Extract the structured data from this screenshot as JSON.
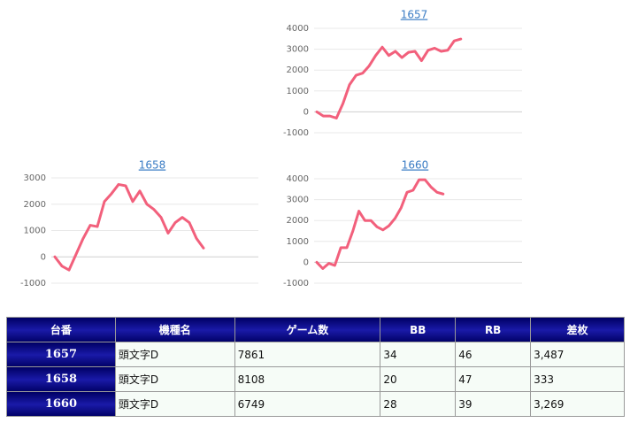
{
  "chart_data": [
    {
      "type": "line",
      "title": "1657",
      "color": "#f2607c",
      "values": [
        0,
        -200,
        -200,
        -300,
        400,
        1300,
        1750,
        1850,
        2200,
        2700,
        3100,
        2700,
        2900,
        2600,
        2850,
        2900,
        2450,
        2950,
        3050,
        2900,
        2950,
        3400,
        3487
      ],
      "ylim": [
        -1000,
        4000
      ],
      "yticks": [
        -1000,
        0,
        1000,
        2000,
        3000,
        4000
      ],
      "grid": true
    },
    {
      "type": "line",
      "title": "1658",
      "color": "#f2607c",
      "values": [
        0,
        -350,
        -500,
        100,
        700,
        1200,
        1150,
        2100,
        2400,
        2750,
        2700,
        2100,
        2500,
        2000,
        1800,
        1500,
        900,
        1300,
        1500,
        1300,
        700,
        333
      ],
      "ylim": [
        -1000,
        3000
      ],
      "yticks": [
        -1000,
        0,
        1000,
        2000,
        3000
      ],
      "grid": true
    },
    {
      "type": "line",
      "title": "1660",
      "color": "#f2607c",
      "values": [
        0,
        -300,
        -50,
        -150,
        700,
        700,
        1500,
        2450,
        2000,
        2000,
        1700,
        1550,
        1750,
        2100,
        2600,
        3350,
        3450,
        3950,
        3950,
        3600,
        3350,
        3269
      ],
      "ylim": [
        -1000,
        4000
      ],
      "yticks": [
        -1000,
        0,
        1000,
        2000,
        3000,
        4000
      ],
      "grid": true
    }
  ],
  "table": {
    "header": [
      "台番",
      "機種名",
      "ゲーム数",
      "BB",
      "RB",
      "差枚"
    ],
    "rows": [
      [
        "1657",
        "頭文字D",
        "7861",
        "34",
        "46",
        "3,487"
      ],
      [
        "1658",
        "頭文字D",
        "8108",
        "20",
        "47",
        "333"
      ],
      [
        "1660",
        "頭文字D",
        "6749",
        "28",
        "39",
        "3,269"
      ]
    ]
  }
}
